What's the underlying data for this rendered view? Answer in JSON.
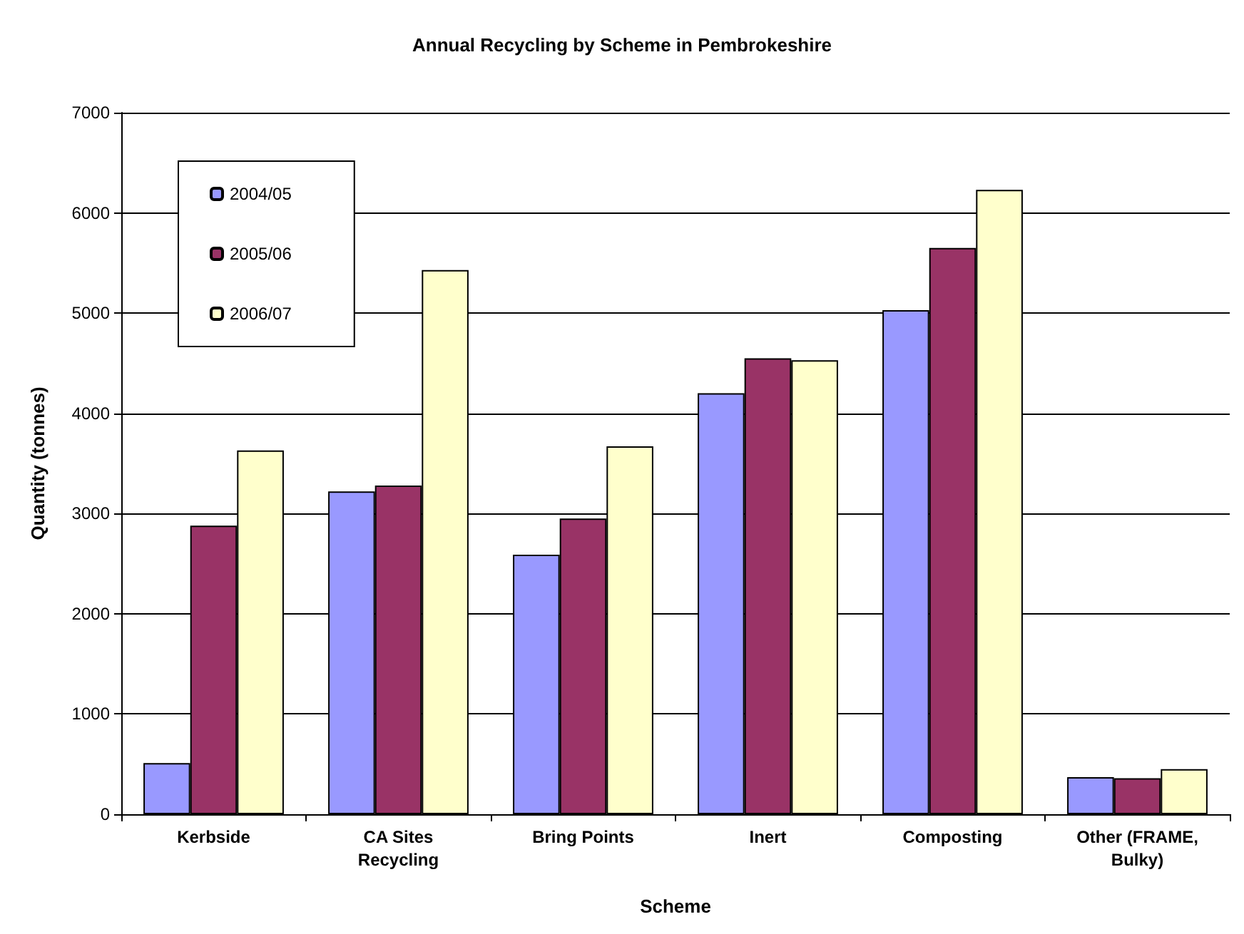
{
  "chart_data": {
    "type": "bar",
    "title": "Annual Recycling by Scheme in Pembrokeshire",
    "xlabel": "Scheme",
    "ylabel": "Quantity (tonnes)",
    "categories": [
      "Kerbside",
      "CA Sites\nRecycling",
      "Bring Points",
      "Inert",
      "Composting",
      "Other (FRAME,\nBulky)"
    ],
    "series": [
      {
        "name": "2004/05",
        "color": "#9999ff",
        "values": [
          510,
          3220,
          2590,
          4200,
          5030,
          370
        ]
      },
      {
        "name": "2005/06",
        "color": "#993366",
        "values": [
          2880,
          3280,
          2950,
          4550,
          5650,
          360
        ]
      },
      {
        "name": "2006/07",
        "color": "#ffffcc",
        "values": [
          3630,
          5430,
          3670,
          4530,
          6230,
          450
        ]
      }
    ],
    "ylim": [
      0,
      7000
    ],
    "yticks": [
      0,
      1000,
      2000,
      3000,
      4000,
      5000,
      6000,
      7000
    ],
    "grid": "y",
    "legend": "top left"
  }
}
